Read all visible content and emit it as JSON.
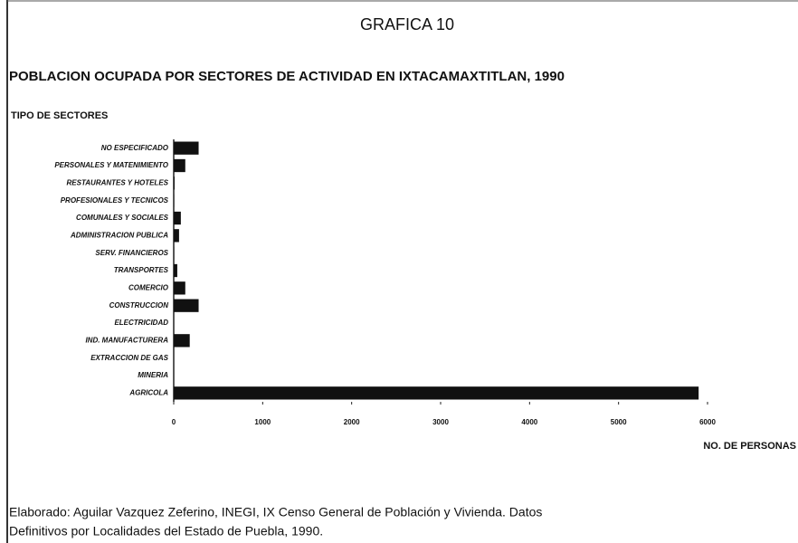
{
  "chart_data": {
    "type": "barh",
    "title": "GRAFICA 10",
    "subtitle": "POBLACION OCUPADA POR SECTORES DE ACTIVIDAD EN  IXTACAMAXTITLAN, 1990",
    "y_label": "TIPO DE SECTORES",
    "x_label": "NO. DE PERSONAS",
    "source": [
      "Elaborado: Aguilar Vazquez Zeferino, INEGI, IX Censo General de Población y Vivienda. Datos",
      "Definitivos por Localidades del Estado de Puebla, 1990."
    ],
    "categories": [
      "NO ESPECIFICADO",
      "PERSONALES Y MATENIMIENTO",
      "RESTAURANTES Y HOTELES",
      "PROFESIONALES Y TECNICOS",
      "COMUNALES Y SOCIALES",
      "ADMINISTRACION PUBLICA",
      "SERV. FINANCIEROS",
      "TRANSPORTES",
      "COMERCIO",
      "CONSTRUCCION",
      "ELECTRICIDAD",
      "IND. MANUFACTURERA",
      "EXTRACCION DE GAS",
      "MINERIA",
      "AGRICOLA"
    ],
    "values": [
      280,
      130,
      10,
      5,
      80,
      60,
      5,
      40,
      130,
      280,
      0,
      180,
      0,
      0,
      5900
    ],
    "color": "#111111",
    "xlim": [
      0,
      6000
    ],
    "xticks": [
      0,
      1000,
      2000,
      3000,
      4000,
      5000,
      6000
    ]
  }
}
